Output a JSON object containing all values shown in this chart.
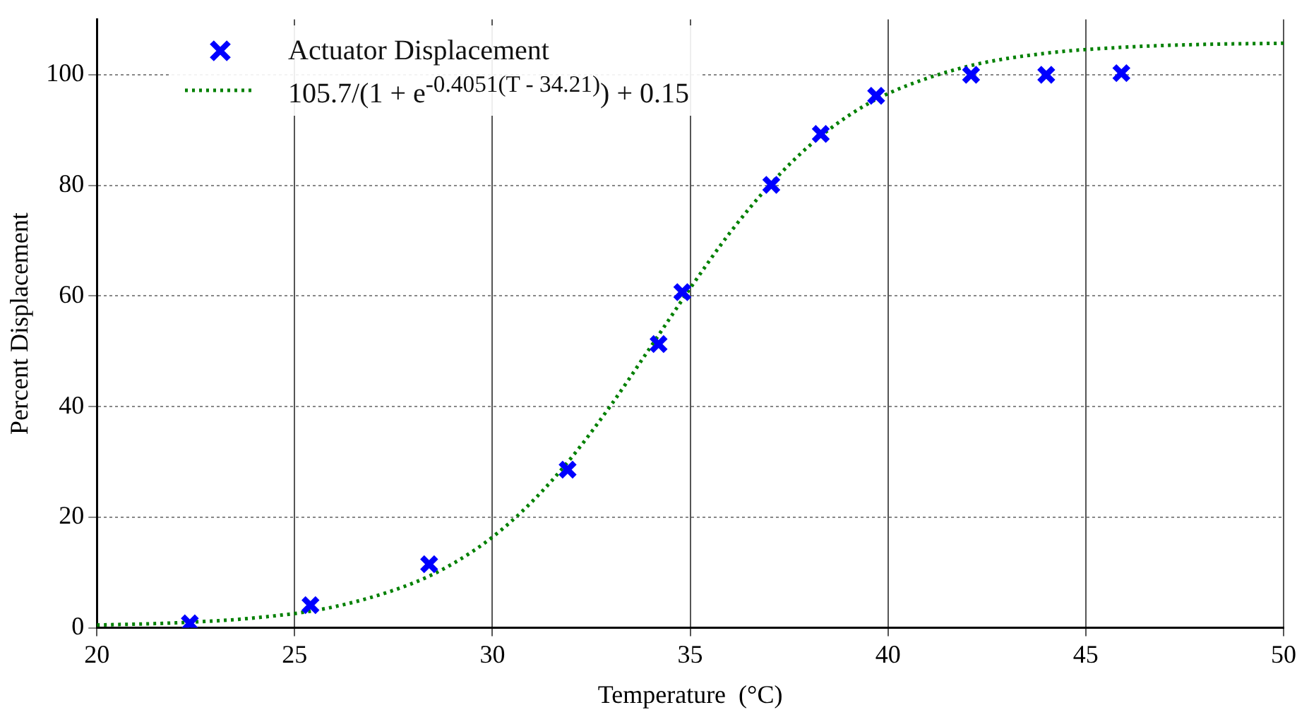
{
  "chart_data": {
    "type": "scatter",
    "xlabel": "Temperature  (°C)",
    "ylabel": "Percent Displacement",
    "xlim": [
      20,
      50
    ],
    "xticks": [
      20,
      25,
      30,
      35,
      40,
      45,
      50
    ],
    "ylim": [
      0,
      110
    ],
    "yticks": [
      0,
      20,
      40,
      60,
      80,
      100
    ],
    "grid": true,
    "legend": "top left",
    "series": [
      {
        "name": "Actuator Displacement",
        "color": "#0000ff",
        "marker": "cross",
        "x": [
          22.35,
          25.4,
          28.4,
          31.9,
          34.2,
          34.8,
          37.05,
          38.3,
          39.7,
          42.1,
          44.0,
          45.9
        ],
        "values": [
          0.8,
          4.1,
          11.5,
          28.6,
          51.3,
          60.7,
          80.1,
          89.3,
          96.2,
          100,
          100,
          100.3
        ]
      },
      {
        "name": "105.7/(1 + e$^{-0.4051(T - 34.21)}$) + 0.15",
        "type": "line",
        "color": "#008000",
        "line_style": "dotted",
        "marker": "none",
        "x": [
          20,
          22,
          24,
          26,
          28,
          29,
          30,
          31,
          32,
          33,
          34,
          35,
          36,
          37,
          38,
          39,
          40,
          42,
          44,
          46,
          48,
          50
        ],
        "values": [
          0.5,
          0.9,
          1.8,
          3.8,
          8.1,
          11.6,
          16.4,
          22.8,
          30.8,
          40.3,
          50.8,
          61.4,
          71.4,
          80.0,
          87.1,
          92.6,
          96.6,
          101.5,
          103.9,
          105.0,
          105.5,
          105.7
        ]
      }
    ]
  }
}
